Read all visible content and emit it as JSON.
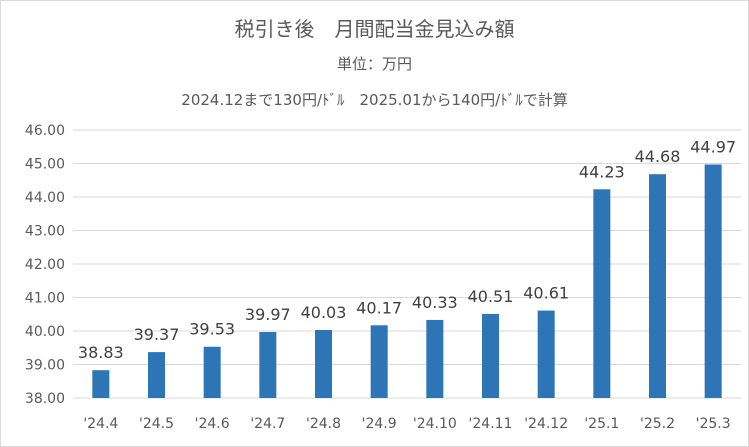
{
  "chart_data": {
    "type": "bar",
    "title": "税引き後　月間配当金見込み額",
    "subtitle": "単位：万円",
    "note": "2024.12まで130円/ﾄﾞﾙ　2025.01から140円/ﾄﾞﾙで計算",
    "categories": [
      "'24.4",
      "'24.5",
      "'24.6",
      "'24.7",
      "'24.8",
      "'24.9",
      "'24.10",
      "'24.11",
      "'24.12",
      "'25.1",
      "'25.2",
      "'25.3"
    ],
    "values": [
      38.83,
      39.37,
      39.53,
      39.97,
      40.03,
      40.17,
      40.33,
      40.51,
      40.61,
      44.23,
      44.68,
      44.97
    ],
    "data_labels": [
      "38.83",
      "39.37",
      "39.53",
      "39.97",
      "40.03",
      "40.17",
      "40.33",
      "40.51",
      "40.61",
      "44.23",
      "44.68",
      "44.97"
    ],
    "yticks": [
      "38.00",
      "39.00",
      "40.00",
      "41.00",
      "42.00",
      "43.00",
      "44.00",
      "45.00",
      "46.00"
    ],
    "ylim": [
      38,
      46
    ],
    "grid": true,
    "legend": "none",
    "bar_color": "#2e75b6",
    "grid_color": "#d9d9d9"
  }
}
